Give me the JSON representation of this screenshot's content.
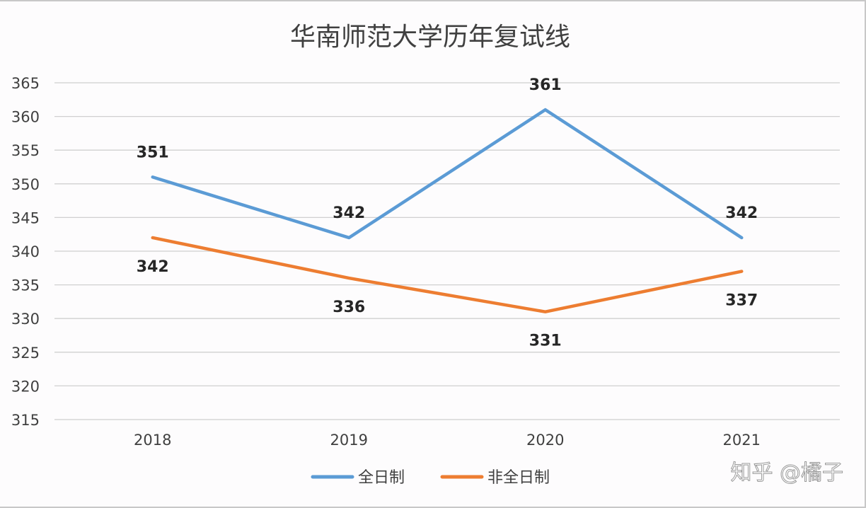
{
  "chart_data": {
    "type": "line",
    "title": "华南师范大学历年复试线",
    "categories": [
      "2018",
      "2019",
      "2020",
      "2021"
    ],
    "series": [
      {
        "name": "全日制",
        "values": [
          351,
          342,
          361,
          342
        ],
        "color": "#5b9bd5",
        "label_position": "above"
      },
      {
        "name": "非全日制",
        "values": [
          342,
          336,
          331,
          337
        ],
        "color": "#ed7d31",
        "label_position": "below"
      }
    ],
    "ylim": [
      315,
      365
    ],
    "yticks": [
      315,
      320,
      325,
      330,
      335,
      340,
      345,
      350,
      355,
      360,
      365
    ],
    "grid": true,
    "legend": "bottom",
    "xlabel": "",
    "ylabel": ""
  },
  "watermark": "知乎 @橘子"
}
